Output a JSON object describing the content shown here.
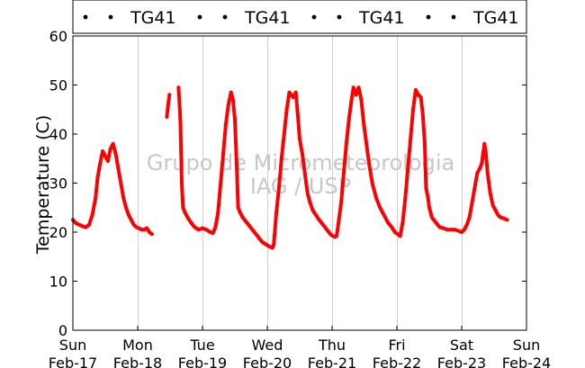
{
  "chart_data": {
    "type": "scatter",
    "title": "",
    "xlabel": "",
    "ylabel": "Temperature (C)",
    "watermark": [
      "Grupo de Micrometeorologia",
      "IAG / USP"
    ],
    "ylim": [
      0,
      60
    ],
    "yticks": [
      0,
      10,
      20,
      30,
      40,
      50,
      60
    ],
    "xlim": [
      0,
      7
    ],
    "x_unit": "days since Sun Feb-17",
    "xticks": [
      {
        "day": "Sun",
        "date": "Feb-17"
      },
      {
        "day": "Mon",
        "date": "Feb-18"
      },
      {
        "day": "Tue",
        "date": "Feb-19"
      },
      {
        "day": "Wed",
        "date": "Feb-20"
      },
      {
        "day": "Thu",
        "date": "Feb-21"
      },
      {
        "day": "Fri",
        "date": "Feb-22"
      },
      {
        "day": "Sat",
        "date": "Feb-23"
      },
      {
        "day": "Sun",
        "date": "Feb-24"
      }
    ],
    "grid": "vertical",
    "legend_position": "top",
    "legend_entries": [
      "TG41",
      "TG41",
      "TG41",
      "TG41"
    ],
    "series": [
      {
        "name": "TG41",
        "color": "#ff0000",
        "points": [
          [
            0.0,
            22.5
          ],
          [
            0.05,
            21.8
          ],
          [
            0.1,
            21.5
          ],
          [
            0.15,
            21.2
          ],
          [
            0.2,
            21.0
          ],
          [
            0.25,
            21.5
          ],
          [
            0.3,
            23.5
          ],
          [
            0.35,
            27.0
          ],
          [
            0.38,
            31.0
          ],
          [
            0.42,
            34.0
          ],
          [
            0.46,
            36.5
          ],
          [
            0.5,
            35.5
          ],
          [
            0.54,
            34.5
          ],
          [
            0.58,
            37.0
          ],
          [
            0.62,
            38.0
          ],
          [
            0.66,
            36.0
          ],
          [
            0.7,
            33.0
          ],
          [
            0.74,
            30.0
          ],
          [
            0.78,
            27.0
          ],
          [
            0.82,
            25.0
          ],
          [
            0.86,
            23.5
          ],
          [
            0.9,
            22.5
          ],
          [
            0.94,
            21.5
          ],
          [
            0.98,
            21.0
          ],
          [
            1.02,
            20.8
          ],
          [
            1.06,
            20.5
          ],
          [
            1.1,
            20.5
          ],
          [
            1.14,
            20.8
          ],
          [
            1.18,
            20.0
          ],
          [
            1.22,
            19.6
          ],
          [
            1.45,
            43.5
          ],
          [
            1.47,
            46.0
          ],
          [
            1.49,
            48.0
          ],
          [
            1.63,
            49.5
          ],
          [
            1.65,
            45.0
          ],
          [
            1.66,
            42.0
          ],
          [
            1.67,
            36.0
          ],
          [
            1.68,
            30.0
          ],
          [
            1.7,
            25.0
          ],
          [
            1.73,
            24.0
          ],
          [
            1.77,
            23.0
          ],
          [
            1.82,
            22.0
          ],
          [
            1.88,
            21.0
          ],
          [
            1.94,
            20.5
          ],
          [
            2.0,
            20.8
          ],
          [
            2.06,
            20.5
          ],
          [
            2.12,
            20.0
          ],
          [
            2.16,
            19.8
          ],
          [
            2.2,
            21.0
          ],
          [
            2.24,
            24.0
          ],
          [
            2.28,
            30.0
          ],
          [
            2.32,
            36.0
          ],
          [
            2.36,
            42.0
          ],
          [
            2.4,
            46.0
          ],
          [
            2.44,
            48.5
          ],
          [
            2.47,
            47.0
          ],
          [
            2.5,
            43.0
          ],
          [
            2.53,
            33.0
          ],
          [
            2.55,
            25.0
          ],
          [
            2.58,
            24.0
          ],
          [
            2.62,
            23.0
          ],
          [
            2.68,
            22.0
          ],
          [
            2.74,
            21.0
          ],
          [
            2.8,
            20.0
          ],
          [
            2.86,
            19.0
          ],
          [
            2.92,
            18.0
          ],
          [
            2.98,
            17.5
          ],
          [
            3.04,
            17.0
          ],
          [
            3.08,
            16.8
          ],
          [
            3.1,
            17.5
          ],
          [
            3.14,
            24.0
          ],
          [
            3.18,
            29.0
          ],
          [
            3.22,
            35.0
          ],
          [
            3.26,
            40.0
          ],
          [
            3.3,
            45.0
          ],
          [
            3.34,
            48.5
          ],
          [
            3.4,
            47.5
          ],
          [
            3.44,
            48.5
          ],
          [
            3.47,
            44.0
          ],
          [
            3.5,
            39.0
          ],
          [
            3.54,
            36.0
          ],
          [
            3.58,
            32.0
          ],
          [
            3.62,
            28.0
          ],
          [
            3.66,
            26.0
          ],
          [
            3.7,
            24.5
          ],
          [
            3.75,
            23.5
          ],
          [
            3.8,
            22.5
          ],
          [
            3.86,
            21.5
          ],
          [
            3.92,
            20.5
          ],
          [
            3.98,
            19.5
          ],
          [
            4.04,
            19.0
          ],
          [
            4.07,
            19.2
          ],
          [
            4.1,
            22.0
          ],
          [
            4.14,
            26.0
          ],
          [
            4.18,
            32.0
          ],
          [
            4.22,
            38.0
          ],
          [
            4.26,
            43.0
          ],
          [
            4.3,
            47.0
          ],
          [
            4.33,
            49.5
          ],
          [
            4.37,
            48.0
          ],
          [
            4.41,
            49.5
          ],
          [
            4.45,
            47.0
          ],
          [
            4.49,
            42.0
          ],
          [
            4.53,
            38.0
          ],
          [
            4.57,
            34.0
          ],
          [
            4.62,
            30.0
          ],
          [
            4.68,
            27.0
          ],
          [
            4.74,
            25.0
          ],
          [
            4.8,
            23.5
          ],
          [
            4.86,
            22.0
          ],
          [
            4.92,
            21.0
          ],
          [
            4.97,
            20.0
          ],
          [
            5.02,
            19.5
          ],
          [
            5.05,
            19.2
          ],
          [
            5.09,
            22.0
          ],
          [
            5.13,
            27.0
          ],
          [
            5.17,
            33.0
          ],
          [
            5.21,
            39.0
          ],
          [
            5.25,
            45.0
          ],
          [
            5.29,
            49.0
          ],
          [
            5.33,
            48.0
          ],
          [
            5.37,
            47.5
          ],
          [
            5.4,
            44.0
          ],
          [
            5.43,
            38.0
          ],
          [
            5.45,
            29.0
          ],
          [
            5.48,
            27.0
          ],
          [
            5.5,
            25.0
          ],
          [
            5.54,
            23.0
          ],
          [
            5.6,
            22.0
          ],
          [
            5.66,
            21.0
          ],
          [
            5.72,
            20.8
          ],
          [
            5.78,
            20.5
          ],
          [
            5.84,
            20.5
          ],
          [
            5.9,
            20.5
          ],
          [
            5.96,
            20.2
          ],
          [
            6.0,
            20.0
          ],
          [
            6.04,
            20.5
          ],
          [
            6.08,
            21.5
          ],
          [
            6.12,
            23.0
          ],
          [
            6.16,
            26.0
          ],
          [
            6.2,
            29.0
          ],
          [
            6.24,
            32.0
          ],
          [
            6.28,
            33.0
          ],
          [
            6.31,
            34.0
          ],
          [
            6.33,
            36.0
          ],
          [
            6.35,
            38.0
          ],
          [
            6.37,
            36.5
          ],
          [
            6.4,
            32.0
          ],
          [
            6.44,
            28.0
          ],
          [
            6.48,
            25.5
          ],
          [
            6.52,
            24.5
          ],
          [
            6.56,
            23.5
          ],
          [
            6.6,
            23.0
          ],
          [
            6.65,
            22.8
          ],
          [
            6.7,
            22.5
          ]
        ]
      }
    ]
  }
}
